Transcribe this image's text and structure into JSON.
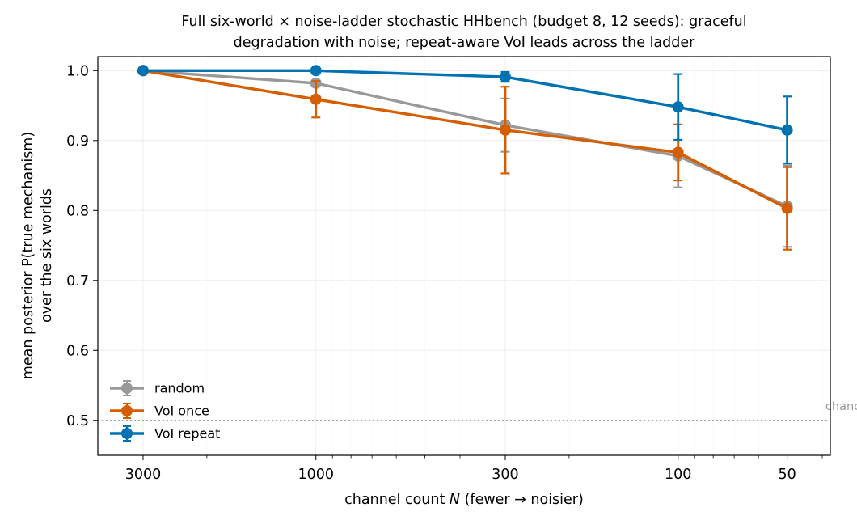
{
  "chart_data": {
    "type": "line",
    "title_lines": [
      "Full six-world × noise-ladder stochastic HHbench (budget 8, 12 seeds): graceful",
      "degradation with noise; repeat-aware VoI leads across the ladder"
    ],
    "xlabel_prefix": "channel count ",
    "xlabel_var": "N",
    "xlabel_suffix": "  (fewer → noisier)",
    "ylabel_lines": [
      "mean posterior P(true mechanism)",
      "over the six worlds"
    ],
    "x_scale": "log",
    "x_reversed": true,
    "xlim": [
      4000,
      38
    ],
    "ylim": [
      0.45,
      1.02
    ],
    "x": [
      3000,
      1000,
      300,
      100,
      50
    ],
    "x_tick_labels": [
      "3000",
      "1000",
      "300",
      "100",
      "50"
    ],
    "y_ticks": [
      0.5,
      0.6,
      0.7,
      0.8,
      0.9,
      1.0
    ],
    "y_tick_labels": [
      "0.5",
      "0.6",
      "0.7",
      "0.8",
      "0.9",
      "1.0"
    ],
    "grid": true,
    "legend_position": "lower-left",
    "series": [
      {
        "name": "random",
        "color": "#999999",
        "values": [
          1.0,
          0.982,
          0.922,
          0.878,
          0.806
        ],
        "errors": [
          0.0,
          0.0,
          0.038,
          0.045,
          0.058
        ]
      },
      {
        "name": "VoI once",
        "color": "#d55e00",
        "values": [
          1.0,
          0.959,
          0.915,
          0.883,
          0.803
        ],
        "errors": [
          0.0,
          0.026,
          0.062,
          0.04,
          0.059
        ]
      },
      {
        "name": "VoI repeat",
        "color": "#0072b2",
        "values": [
          1.0,
          1.0,
          0.991,
          0.948,
          0.915
        ],
        "errors": [
          0.0,
          0.0,
          0.007,
          0.047,
          0.048
        ]
      }
    ],
    "reference_line": {
      "y": 0.5,
      "label": "chance",
      "color": "#999999"
    }
  }
}
